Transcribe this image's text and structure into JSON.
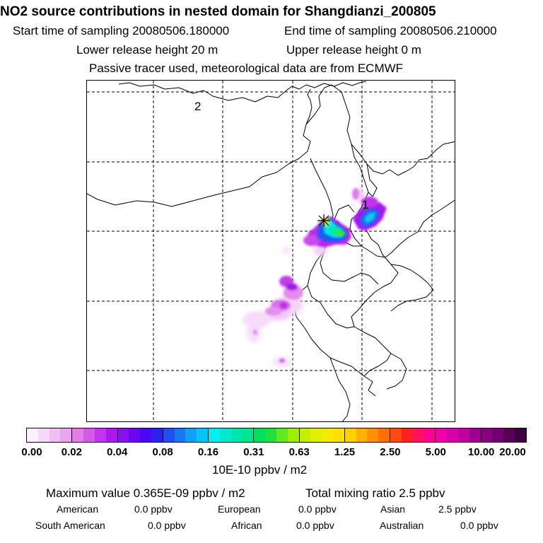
{
  "header": {
    "title": "NO2 source contributions in nested domain for Shangdianzi_200805",
    "start_time": "Start time of sampling 20080506.180000",
    "end_time": "End time of sampling 20080506.210000",
    "lower_release": "Lower release height   20 m",
    "upper_release": "Upper release height    0 m",
    "tracer_note": "Passive tracer used, meteorological data are from ECMWF"
  },
  "map": {
    "labels": [
      "2",
      "1"
    ],
    "receptor_marker": "receptor-star-icon"
  },
  "colorbar": {
    "tick_labels": [
      "0.00",
      "0.02",
      "0.04",
      "0.08",
      "0.16",
      "0.31",
      "0.63",
      "1.25",
      "2.50",
      "5.00",
      "10.00",
      "20.00"
    ],
    "units": "10E-10 ppbv / m2",
    "segments": [
      [
        "#fdf0fd",
        "#f8d8f8",
        "#f2bdf2",
        "#eca4ec"
      ],
      [
        "#e27fe6",
        "#d65ae8",
        "#c235ec",
        "#ab17ee"
      ],
      [
        "#8a10ee",
        "#6a08f0",
        "#4c08f2",
        "#3020ee"
      ],
      [
        "#2050f2",
        "#1878f2",
        "#10a0f4",
        "#08c4f4"
      ],
      [
        "#00f0f0",
        "#00e8d0",
        "#00e6b0",
        "#00e690"
      ],
      [
        "#00e060",
        "#20e040",
        "#60e820",
        "#9cf000"
      ],
      [
        "#c4f000",
        "#e0f000",
        "#f4ec00",
        "#fce000"
      ],
      [
        "#ffd000",
        "#ffb000",
        "#ff9000",
        "#ff7000"
      ],
      [
        "#ff4a10",
        "#ff2020",
        "#ff1060",
        "#ff0090"
      ],
      [
        "#f000a8",
        "#d800a8",
        "#c000a0",
        "#a00090"
      ],
      [
        "#880080",
        "#700070",
        "#580058",
        "#400040"
      ]
    ]
  },
  "stats": {
    "max_value": "Maximum value  0.365E-09 ppbv / m2",
    "total_mixing": "Total mixing ratio        2.5 ppbv",
    "regions": [
      {
        "name": "American",
        "value": "0.0 ppbv"
      },
      {
        "name": "European",
        "value": "0.0 ppbv"
      },
      {
        "name": "Asian",
        "value": "2.5 ppbv"
      },
      {
        "name": "South American",
        "value": "0.0 ppbv"
      },
      {
        "name": "African",
        "value": "0.0 ppbv"
      },
      {
        "name": "Australian",
        "value": "0.0 ppbv"
      }
    ]
  }
}
